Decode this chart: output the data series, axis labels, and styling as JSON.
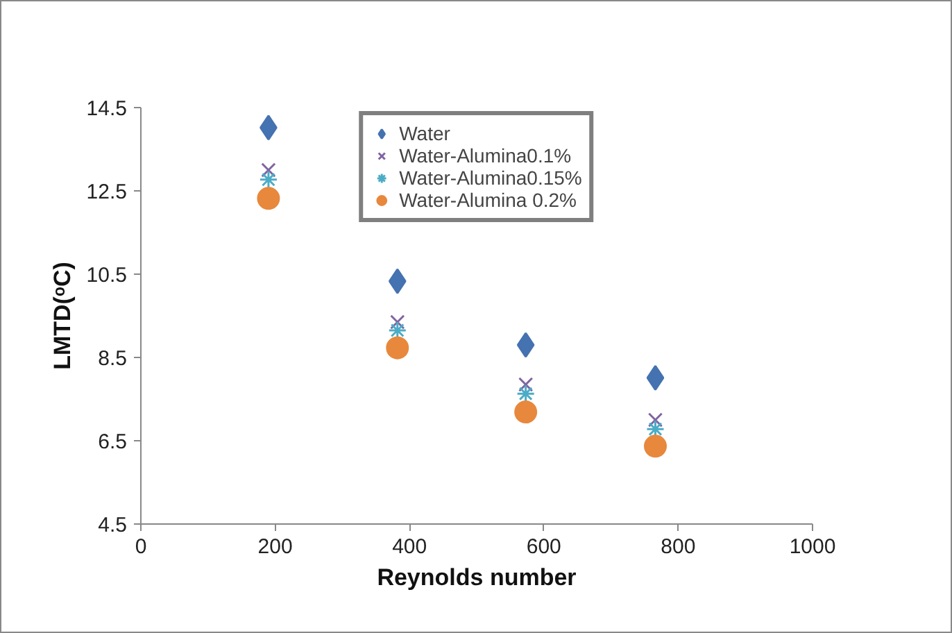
{
  "chart_data": {
    "type": "scatter",
    "xlabel": "Reynolds number",
    "ylabel": "LMTD(ᵒC)",
    "xlim": [
      0,
      1000
    ],
    "xticks": [
      0,
      200,
      400,
      600,
      800,
      1000
    ],
    "ylim": [
      4.5,
      14.5
    ],
    "yticks": [
      4.5,
      6.5,
      8.5,
      10.5,
      12.5,
      14.5
    ],
    "x": [
      190,
      382,
      573,
      766
    ],
    "grid": false,
    "legend": "top",
    "series": [
      {
        "name": "Water",
        "color": "#4572b0",
        "marker": "diamond",
        "values": [
          14.02,
          10.33,
          8.8,
          8.01
        ]
      },
      {
        "name": "Water-Alumina0.1%",
        "color": "#8064a2",
        "marker": "x",
        "values": [
          13.0,
          9.35,
          7.85,
          7.0
        ]
      },
      {
        "name": "Water-Alumina0.15%",
        "color": "#4bacc6",
        "marker": "cross",
        "values": [
          12.77,
          9.15,
          7.63,
          6.78
        ]
      },
      {
        "name": "Water-Alumina 0.2%",
        "color": "#e8883c",
        "marker": "circle",
        "values": [
          12.32,
          8.73,
          7.19,
          6.37
        ]
      }
    ]
  }
}
